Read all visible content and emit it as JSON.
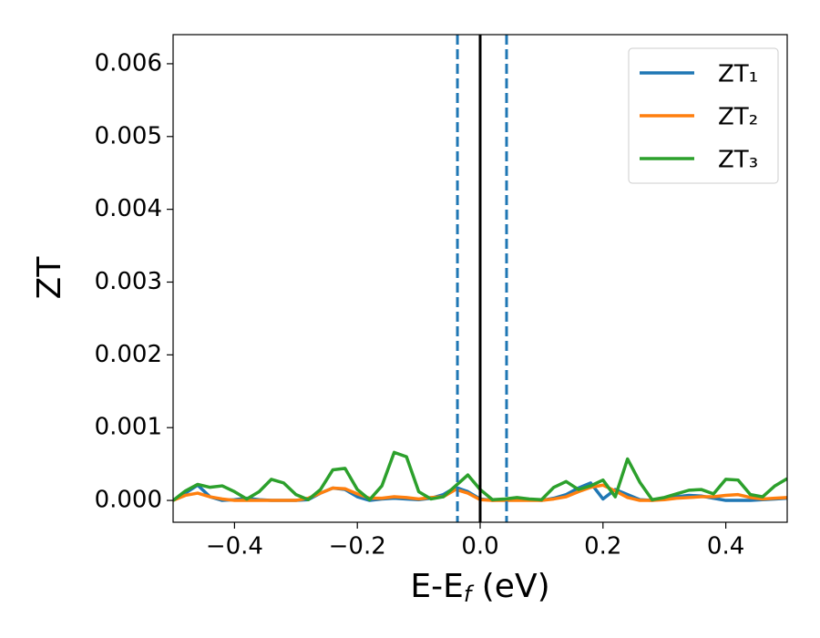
{
  "chart_data": {
    "type": "line",
    "ylabel": "ZT",
    "xlabel": [
      "E-E",
      "f",
      " (eV)"
    ],
    "x": [
      -0.5,
      -0.48,
      -0.46,
      -0.44,
      -0.42,
      -0.4,
      -0.38,
      -0.36,
      -0.34,
      -0.32,
      -0.3,
      -0.28,
      -0.26,
      -0.24,
      -0.22,
      -0.2,
      -0.18,
      -0.16,
      -0.14,
      -0.12,
      -0.1,
      -0.08,
      -0.06,
      -0.04,
      -0.02,
      0,
      0.02,
      0.04,
      0.06,
      0.08,
      0.1,
      0.12,
      0.14,
      0.16,
      0.18,
      0.2,
      0.22,
      0.24,
      0.26,
      0.28,
      0.3,
      0.32,
      0.34,
      0.36,
      0.38,
      0.4,
      0.42,
      0.44,
      0.46,
      0.48,
      0.5
    ],
    "series": [
      {
        "name": "ZT₁",
        "color": "#1f77b4",
        "values": [
          0,
          0.0001,
          0.00021,
          5e-05,
          0,
          1e-05,
          3e-05,
          1e-05,
          0,
          0,
          0,
          1e-05,
          0.0001,
          0.00017,
          0.00015,
          5e-05,
          0,
          2e-05,
          3e-05,
          2e-05,
          1e-05,
          3e-05,
          8e-05,
          0.00018,
          0.00012,
          2e-05,
          0,
          1e-05,
          3e-05,
          1e-05,
          0,
          3e-05,
          8e-05,
          0.00017,
          0.00024,
          2e-05,
          0.00015,
          8e-05,
          1e-05,
          0,
          2e-05,
          5e-05,
          7e-05,
          6e-05,
          3e-05,
          0,
          0,
          0,
          1e-05,
          2e-05,
          3e-05
        ]
      },
      {
        "name": "ZT₂",
        "color": "#ff7f0e",
        "values": [
          0,
          7e-05,
          0.0001,
          5e-05,
          2e-05,
          0,
          0,
          0,
          0,
          0,
          0,
          3e-05,
          0.0001,
          0.00017,
          0.00016,
          9e-05,
          3e-05,
          3e-05,
          5e-05,
          4e-05,
          2e-05,
          4e-05,
          5e-05,
          0.00015,
          0.0001,
          1e-05,
          0,
          0,
          0,
          0,
          0,
          2e-05,
          5e-05,
          0.00012,
          0.00018,
          0.00021,
          0.00013,
          4e-05,
          0,
          0,
          1e-05,
          3e-05,
          4e-05,
          5e-05,
          5e-05,
          7e-05,
          8e-05,
          4e-05,
          2e-05,
          3e-05,
          4e-05
        ]
      },
      {
        "name": "ZT₃",
        "color": "#2ca02c",
        "values": [
          0,
          0.00013,
          0.00022,
          0.00018,
          0.0002,
          0.00012,
          2e-05,
          0.00012,
          0.00029,
          0.00024,
          8e-05,
          1e-05,
          0.00015,
          0.00042,
          0.00044,
          0.00015,
          1e-05,
          0.0002,
          0.00066,
          0.0006,
          0.00012,
          2e-05,
          5e-05,
          0.0002,
          0.00035,
          0.00015,
          1e-05,
          2e-05,
          4e-05,
          2e-05,
          1e-05,
          0.00018,
          0.00026,
          0.00015,
          0.0002,
          0.00028,
          5e-05,
          0.00057,
          0.00025,
          1e-05,
          4e-05,
          9e-05,
          0.00014,
          0.00015,
          9e-05,
          0.00029,
          0.00028,
          8e-05,
          5e-05,
          0.0002,
          0.0003
        ]
      }
    ],
    "vlines": [
      {
        "x": -0.037,
        "color": "#1f77b4",
        "style": "dashed"
      },
      {
        "x": 0,
        "color": "#000000",
        "style": "solid"
      },
      {
        "x": 0.043,
        "color": "#1f77b4",
        "style": "dashed"
      }
    ],
    "xlim": [
      -0.5,
      0.5
    ],
    "ylim": [
      -0.0003,
      0.0064
    ],
    "xticks": [
      {
        "value": -0.4,
        "label": "−0.4"
      },
      {
        "value": -0.2,
        "label": "−0.2"
      },
      {
        "value": 0,
        "label": "0.0"
      },
      0.2,
      0.4
    ],
    "yticks": [
      {
        "value": 0,
        "label": "0.000"
      },
      0.001,
      0.002,
      0.003,
      0.004,
      0.005,
      0.006
    ],
    "legend": "upper right",
    "grid": false
  }
}
